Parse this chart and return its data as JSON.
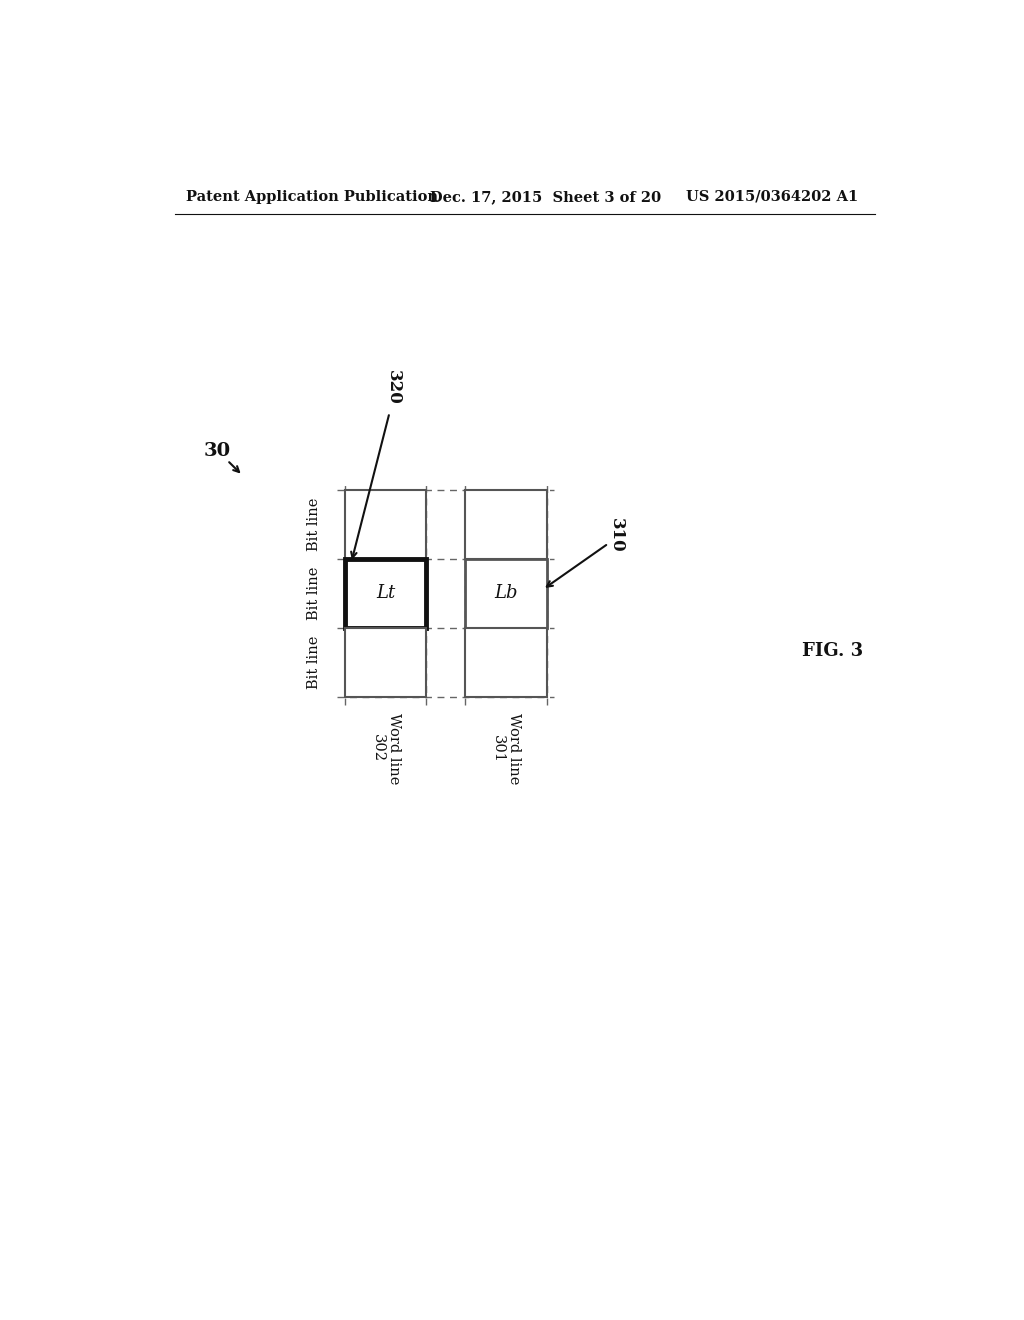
{
  "header_left": "Patent Application Publication",
  "header_mid": "Dec. 17, 2015  Sheet 3 of 20",
  "header_right": "US 2015/0364202 A1",
  "fig_label": "FIG. 3",
  "diagram_label": "30",
  "label_320": "320",
  "label_310": "310",
  "bit_lines": [
    "Bit line",
    "Bit line",
    "Bit line"
  ],
  "word_line_302": "Word line\n302",
  "word_line_301": "Word line\n301",
  "cell_Lt": "Lt",
  "cell_Lb": "Lb",
  "bg_color": "#ffffff",
  "grid_color": "#666666",
  "cell_border_normal": "#555555",
  "cell_border_thick": "#111111",
  "text_color": "#111111",
  "header_fontsize": 10.5,
  "fig_fontsize": 13,
  "label_fontsize": 12,
  "bitline_fontsize": 10.5,
  "wordline_fontsize": 10.5,
  "cell_text_fontsize": 13
}
